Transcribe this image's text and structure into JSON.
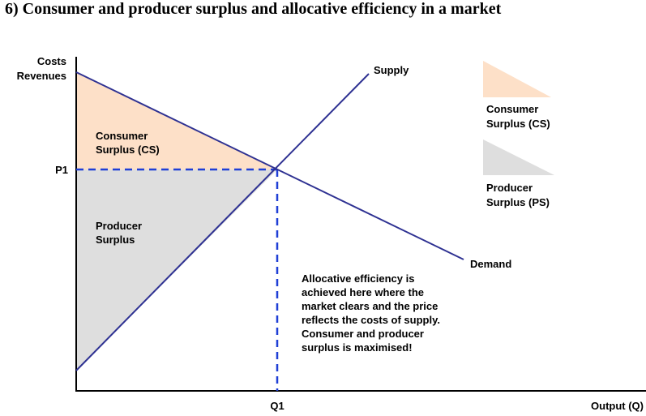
{
  "title": "6) Consumer and producer surplus and allocative efficiency in a market",
  "axes": {
    "y_label_line1": "Costs",
    "y_label_line2": "Revenues",
    "x_label": "Output (Q)",
    "price_tick": "P1",
    "quantity_tick": "Q1"
  },
  "curves": {
    "supply": "Supply",
    "demand": "Demand"
  },
  "areas": {
    "consumer_line1": "Consumer",
    "consumer_line2": "Surplus (CS)",
    "producer_line1": "Producer",
    "producer_line2": "Surplus"
  },
  "legend": {
    "cs_line1": "Consumer",
    "cs_line2": "Surplus (CS)",
    "ps_line1": "Producer",
    "ps_line2": "Surplus (PS)"
  },
  "annotation": [
    "Allocative efficiency is",
    "achieved here where the",
    "market clears and the price",
    "reflects the costs of supply.",
    "Consumer and producer",
    "surplus is maximised!"
  ],
  "colors": {
    "consumer_surplus": "#fde0c8",
    "producer_surplus": "#dedede",
    "curve": "#2e3192",
    "dashed_guide": "#1f3fd6",
    "axis": "#000000"
  }
}
